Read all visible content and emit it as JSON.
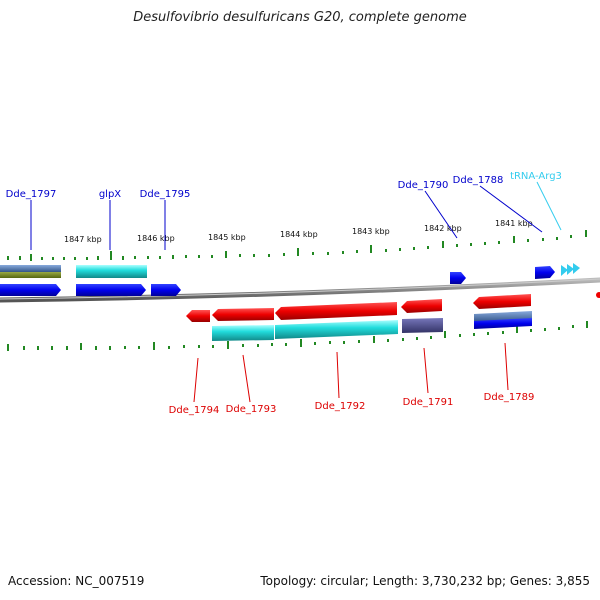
{
  "title": "Desulfovibrio desulfuricans G20, complete genome",
  "footer": {
    "accession": "Accession: NC_007519",
    "summary": "Topology: circular; Length: 3,730,232 bp; Genes: 3,855"
  },
  "scale_labels": [
    "1847 kbp",
    "1846 kbp",
    "1845 kbp",
    "1844 kbp",
    "1843 kbp",
    "1842 kbp",
    "1841 kbp"
  ],
  "top_labels": [
    "Dde_1797",
    "glpX",
    "Dde_1795",
    "Dde_1790",
    "Dde_1788",
    "tRNA-Arg3"
  ],
  "bottom_labels": [
    "Dde_1794",
    "Dde_1793",
    "Dde_1792",
    "Dde_1791",
    "Dde_1789"
  ],
  "colors": {
    "forward_gene": "#0000ee",
    "reverse_gene": "#ee0000",
    "trna": "#33ccee",
    "cyan_feature": "#22dddd",
    "navy_feature": "#444488",
    "tick": "#228822",
    "backbone": "#888888"
  }
}
